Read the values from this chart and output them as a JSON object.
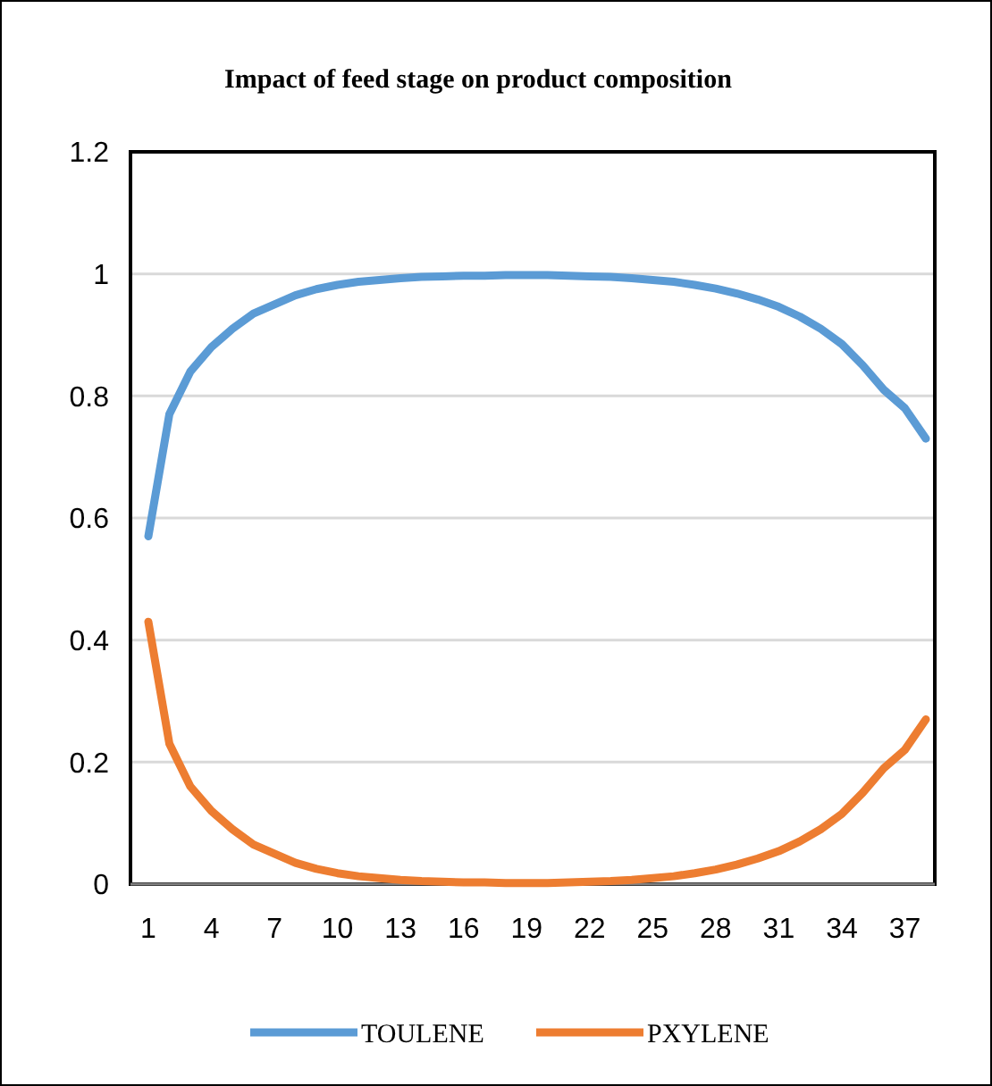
{
  "chart_data": {
    "type": "line",
    "title": "Impact of feed stage on product composition",
    "categories": [
      "1",
      null,
      null,
      "4",
      null,
      null,
      "7",
      null,
      null,
      "10",
      null,
      null,
      "13",
      null,
      null,
      "16",
      null,
      null,
      "19",
      null,
      null,
      "22",
      null,
      null,
      "25",
      null,
      null,
      "28",
      null,
      null,
      "31",
      null,
      null,
      "34",
      null,
      null,
      "37",
      null
    ],
    "series": [
      {
        "name": "TOULENE",
        "color": "#5b9bd5",
        "values": [
          0.57,
          0.77,
          0.84,
          0.88,
          0.91,
          0.935,
          0.95,
          0.965,
          0.975,
          0.982,
          0.987,
          0.99,
          0.993,
          0.995,
          0.996,
          0.997,
          0.997,
          0.998,
          0.998,
          0.998,
          0.997,
          0.996,
          0.995,
          0.993,
          0.99,
          0.987,
          0.982,
          0.976,
          0.968,
          0.958,
          0.946,
          0.93,
          0.91,
          0.885,
          0.85,
          0.81,
          0.78,
          0.73
        ]
      },
      {
        "name": "PXYLENE",
        "color": "#ed7d31",
        "values": [
          0.43,
          0.23,
          0.16,
          0.12,
          0.09,
          0.065,
          0.05,
          0.035,
          0.025,
          0.018,
          0.013,
          0.01,
          0.007,
          0.005,
          0.004,
          0.003,
          0.003,
          0.002,
          0.002,
          0.002,
          0.003,
          0.004,
          0.005,
          0.007,
          0.01,
          0.013,
          0.018,
          0.024,
          0.032,
          0.042,
          0.054,
          0.07,
          0.09,
          0.115,
          0.15,
          0.19,
          0.22,
          0.27
        ]
      }
    ],
    "ylim": [
      0,
      1.2
    ],
    "yticks": [
      0,
      0.2,
      0.4,
      0.6,
      0.8,
      1,
      1.2
    ],
    "grid": "y",
    "legend": "bottom",
    "marker": "none",
    "line_style": "solid"
  }
}
